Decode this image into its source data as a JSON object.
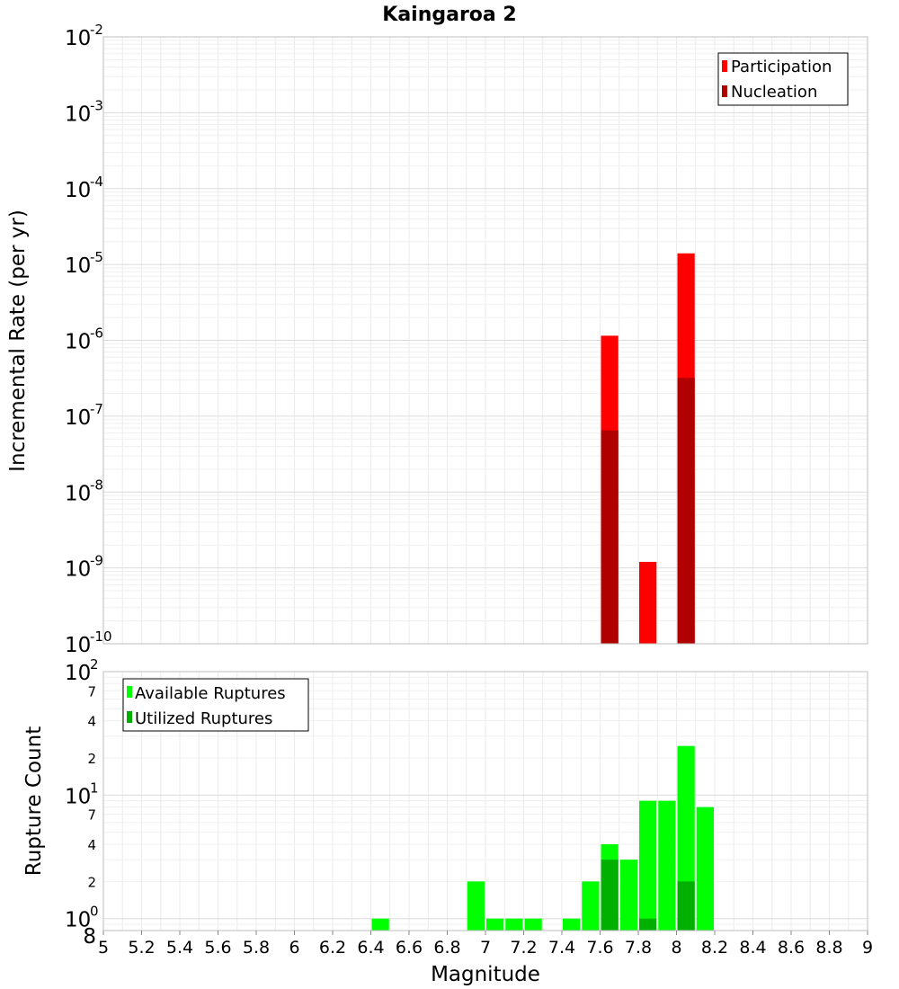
{
  "chart_data": [
    {
      "type": "bar",
      "title": "Kaingaroa 2",
      "xlabel": "",
      "ylabel": "Incremental Rate (per yr)",
      "xlim": [
        5,
        9
      ],
      "ylim": [
        1e-10,
        0.01
      ],
      "yscale": "log",
      "grid": true,
      "legend_position": "top-right",
      "legend": [
        "Participation",
        "Nucleation"
      ],
      "colors": {
        "Participation": "#ff0000",
        "Nucleation": "#b00000"
      },
      "bin_width": 0.1,
      "series": [
        {
          "name": "Participation",
          "x": [
            7.65,
            7.85,
            8.05
          ],
          "values": [
            1.15e-06,
            1.2e-09,
            1.4e-05
          ]
        },
        {
          "name": "Nucleation",
          "x": [
            7.65,
            8.05
          ],
          "values": [
            6.5e-08,
            3.2e-07
          ]
        }
      ],
      "y_major_ticks": [
        {
          "base": "10",
          "exp": "-2",
          "value": 0.01
        },
        {
          "base": "10",
          "exp": "-3",
          "value": 0.001
        },
        {
          "base": "10",
          "exp": "-4",
          "value": 0.0001
        },
        {
          "base": "10",
          "exp": "-5",
          "value": 1e-05
        },
        {
          "base": "10",
          "exp": "-6",
          "value": 1e-06
        },
        {
          "base": "10",
          "exp": "-7",
          "value": 1e-07
        },
        {
          "base": "10",
          "exp": "-8",
          "value": 1e-08
        },
        {
          "base": "10",
          "exp": "-9",
          "value": 1e-09
        },
        {
          "base": "10",
          "exp": "-10",
          "value": 1e-10
        }
      ]
    },
    {
      "type": "bar",
      "title": "",
      "xlabel": "Magnitude",
      "ylabel": "Rupture Count",
      "xlim": [
        5,
        9
      ],
      "ylim": [
        0.8,
        100
      ],
      "yscale": "log",
      "grid": true,
      "legend_position": "top-left",
      "legend": [
        "Available Ruptures",
        "Utilized Ruptures"
      ],
      "colors": {
        "Available Ruptures": "#00ff00",
        "Utilized Ruptures": "#00b000"
      },
      "bin_width": 0.1,
      "series": [
        {
          "name": "Available Ruptures",
          "x": [
            6.45,
            6.95,
            7.05,
            7.15,
            7.25,
            7.45,
            7.55,
            7.65,
            7.75,
            7.85,
            7.95,
            8.05,
            8.15
          ],
          "values": [
            1,
            2,
            1,
            1,
            1,
            1,
            2,
            4,
            3,
            9,
            9,
            25,
            8
          ]
        },
        {
          "name": "Utilized Ruptures",
          "x": [
            7.65,
            7.85,
            8.05
          ],
          "values": [
            3,
            1,
            2
          ]
        }
      ],
      "y_major_ticks": [
        {
          "base": "10",
          "exp": "2",
          "value": 100
        },
        {
          "base": "10",
          "exp": "1",
          "value": 10
        },
        {
          "base": "10",
          "exp": "0",
          "value": 1
        }
      ],
      "y_minor_labels": [
        {
          "label": "7",
          "value": 70
        },
        {
          "label": "4",
          "value": 40
        },
        {
          "label": "2",
          "value": 20
        },
        {
          "label": "7",
          "value": 7
        },
        {
          "label": "4",
          "value": 4
        },
        {
          "label": "2",
          "value": 2
        },
        {
          "label": "8",
          "value": 0.8
        }
      ],
      "x_ticks": [
        "5",
        "5.2",
        "5.4",
        "5.6",
        "5.8",
        "6",
        "6.2",
        "6.4",
        "6.6",
        "6.8",
        "7",
        "7.2",
        "7.4",
        "7.6",
        "7.8",
        "8",
        "8.2",
        "8.4",
        "8.6",
        "8.8",
        "9"
      ]
    }
  ]
}
